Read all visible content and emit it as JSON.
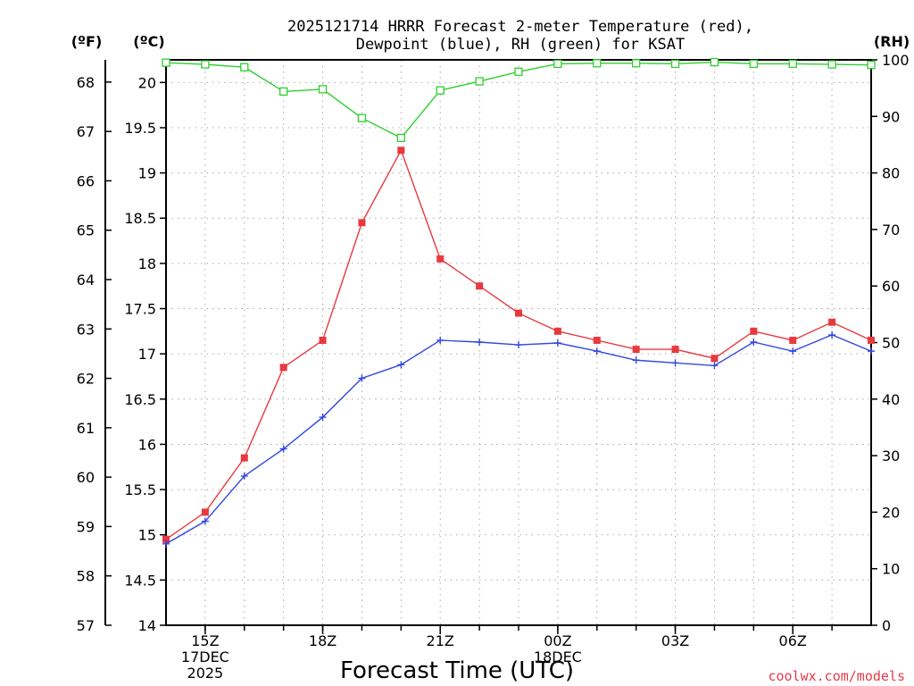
{
  "chart_data": {
    "type": "line",
    "title_lines": [
      "2025121714 HRRR Forecast 2-meter Temperature (red),",
      "Dewpoint (blue), RH (green) for KSAT"
    ],
    "xlabel": "Forecast Time (UTC)",
    "credit": "coolwx.com/models",
    "units": {
      "fahrenheit": "(ºF)",
      "celsius": "(ºC)",
      "rh": "(RH)"
    },
    "grid": true,
    "x_hours": [
      14,
      15,
      16,
      17,
      18,
      19,
      20,
      21,
      22,
      23,
      24,
      25,
      26,
      27,
      28,
      29,
      30,
      31,
      32
    ],
    "x_range": [
      14,
      32
    ],
    "x_ticks": [
      {
        "hour": 15,
        "lines": [
          "15Z",
          "17DEC",
          "2025"
        ]
      },
      {
        "hour": 18,
        "lines": [
          "18Z"
        ]
      },
      {
        "hour": 21,
        "lines": [
          "21Z"
        ]
      },
      {
        "hour": 24,
        "lines": [
          "00Z",
          "18DEC"
        ]
      },
      {
        "hour": 27,
        "lines": [
          "03Z"
        ]
      },
      {
        "hour": 30,
        "lines": [
          "06Z"
        ]
      }
    ],
    "celsius_range": [
      14,
      20.25
    ],
    "celsius_ticks": [
      "14",
      "14.5",
      "15",
      "15.5",
      "16",
      "16.5",
      "17",
      "17.5",
      "18",
      "18.5",
      "19",
      "19.5",
      "20"
    ],
    "fahrenheit_range": [
      57,
      68.45
    ],
    "fahrenheit_ticks": [
      "57",
      "58",
      "59",
      "60",
      "61",
      "62",
      "63",
      "64",
      "65",
      "66",
      "67",
      "68"
    ],
    "rh_range": [
      0,
      100
    ],
    "rh_ticks": [
      "0",
      "10",
      "20",
      "30",
      "40",
      "50",
      "60",
      "70",
      "80",
      "90",
      "100"
    ],
    "series": [
      {
        "key": "temperature",
        "axis": "celsius",
        "color": "#e8393f",
        "marker": "filled-square",
        "values": [
          14.95,
          15.25,
          15.85,
          16.85,
          17.15,
          18.45,
          19.25,
          18.05,
          17.75,
          17.45,
          17.25,
          17.15,
          17.05,
          17.05,
          16.95,
          17.25,
          17.15,
          17.35,
          17.15
        ]
      },
      {
        "key": "dewpoint",
        "axis": "celsius",
        "color": "#3347e0",
        "marker": "plus",
        "values": [
          14.9,
          15.15,
          15.65,
          15.95,
          16.3,
          16.73,
          16.88,
          17.15,
          17.13,
          17.1,
          17.12,
          17.03,
          16.93,
          16.9,
          16.87,
          17.13,
          17.03,
          17.21,
          17.03
        ]
      },
      {
        "key": "rh",
        "axis": "rh",
        "color": "#2ecf2e",
        "marker": "open-square",
        "values": [
          99.5,
          99.2,
          98.7,
          94.4,
          94.8,
          89.7,
          86.2,
          94.6,
          96.2,
          97.9,
          99.3,
          99.4,
          99.4,
          99.3,
          99.6,
          99.3,
          99.3,
          99.2,
          99.1
        ]
      }
    ]
  }
}
